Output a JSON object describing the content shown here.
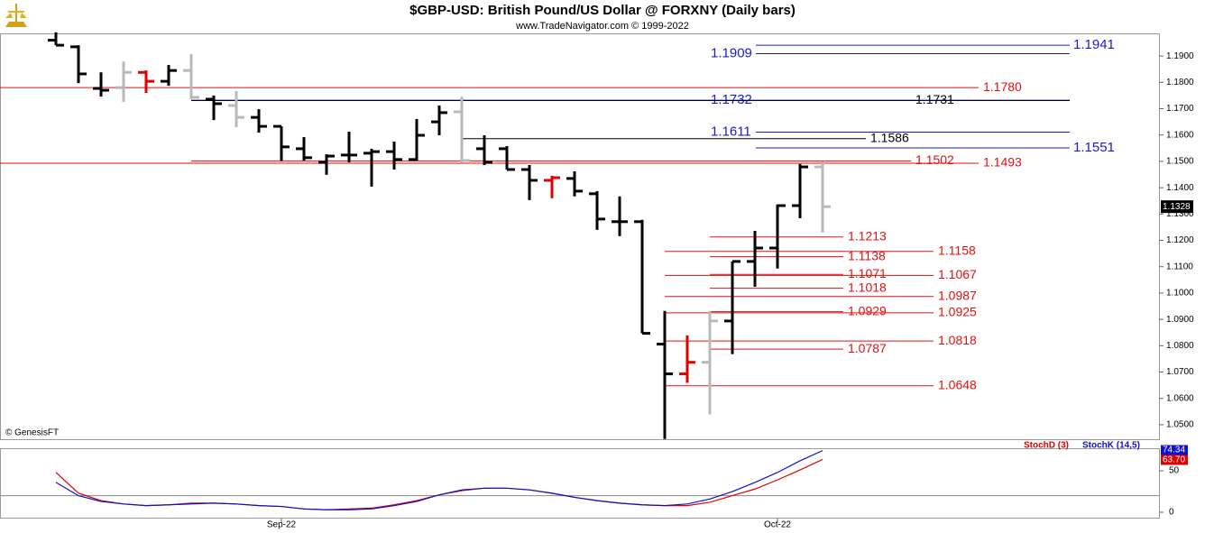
{
  "chart_data": [
    {
      "type": "ohlc",
      "title": "$GBP-USD:  British Pound/US Dollar @ FORXNY  (Daily bars)",
      "subtitle": "www.TradeNavigator.com © 1999-2022",
      "credit": "© GenesisFT",
      "categories": [
        null,
        null,
        null,
        null,
        null,
        null,
        null,
        null,
        null,
        null,
        "Sep-22",
        null,
        null,
        null,
        null,
        null,
        null,
        null,
        null,
        null,
        null,
        null,
        null,
        null,
        null,
        null,
        null,
        null,
        null,
        null,
        null,
        null,
        "Oct-22",
        null,
        null
      ],
      "open": [
        1.196,
        1.1935,
        1.1777,
        1.178,
        1.1838,
        1.1804,
        1.1845,
        1.1736,
        1.1712,
        1.1667,
        1.1633,
        1.1548,
        1.1496,
        1.1524,
        1.1531,
        1.1537,
        1.1507,
        1.165,
        1.1688,
        1.1548,
        1.1548,
        1.1469,
        1.1428,
        1.1435,
        1.1377,
        1.1271,
        1.1271,
        1.0806,
        1.0693,
        1.0737,
        1.0894,
        1.112,
        1.1171,
        1.1332,
        1.1479
      ],
      "high": [
        1.199,
        1.1941,
        1.1838,
        1.1879,
        1.1845,
        1.1866,
        1.1907,
        1.175,
        1.1767,
        1.1698,
        1.1633,
        1.1592,
        1.1527,
        1.1613,
        1.1548,
        1.1575,
        1.1661,
        1.1712,
        1.1746,
        1.1599,
        1.1558,
        1.1486,
        1.1445,
        1.1462,
        1.1387,
        1.1367,
        1.1278,
        1.0932,
        1.0839,
        1.0932,
        1.112,
        1.1236,
        1.1336,
        1.149,
        1.15
      ],
      "low": [
        1.1941,
        1.1797,
        1.1746,
        1.1726,
        1.176,
        1.1787,
        1.1736,
        1.1657,
        1.163,
        1.1609,
        1.1503,
        1.1503,
        1.1449,
        1.1496,
        1.1404,
        1.1469,
        1.1503,
        1.1599,
        1.1496,
        1.1486,
        1.1469,
        1.1353,
        1.136,
        1.1367,
        1.124,
        1.1216,
        1.0847,
        1.0446,
        1.0659,
        1.0539,
        1.0768,
        1.1024,
        1.1093,
        1.1284,
        1.123
      ],
      "close": [
        1.1941,
        1.1832,
        1.177,
        1.1838,
        1.1804,
        1.1845,
        1.1743,
        1.1719,
        1.1667,
        1.1633,
        1.1555,
        1.1514,
        1.152,
        1.1524,
        1.1537,
        1.1507,
        1.1599,
        1.1685,
        1.1503,
        1.1496,
        1.1469,
        1.1428,
        1.1438,
        1.1387,
        1.1281,
        1.1271,
        1.0847,
        1.0693,
        1.0737,
        1.0894,
        1.112,
        1.1171,
        1.1332,
        1.1479,
        1.1328
      ],
      "bar_colors": [
        "#000",
        "#000",
        "#000",
        "#b8b8b8",
        "#e00000",
        "#000",
        "#b8b8b8",
        "#000",
        "#b8b8b8",
        "#000",
        "#000",
        "#000",
        "#000",
        "#000",
        "#000",
        "#000",
        "#000",
        "#000",
        "#b8b8b8",
        "#000",
        "#000",
        "#000",
        "#e00000",
        "#000",
        "#000",
        "#000",
        "#000",
        "#000",
        "#e00000",
        "#b8b8b8",
        "#000",
        "#000",
        "#000",
        "#000",
        "#b8b8b8"
      ],
      "ylim": [
        1.0445,
        1.1986
      ],
      "yticks": [
        {
          "value": 1.05,
          "label": "1.0500"
        },
        {
          "value": 1.06,
          "label": "1.0600"
        },
        {
          "value": 1.07,
          "label": "1.0700"
        },
        {
          "value": 1.08,
          "label": "1.0800"
        },
        {
          "value": 1.09,
          "label": "1.0900"
        },
        {
          "value": 1.1,
          "label": "1.1000"
        },
        {
          "value": 1.11,
          "label": "1.1100"
        },
        {
          "value": 1.12,
          "label": "1.1200"
        },
        {
          "value": 1.13,
          "label": "1.1300"
        },
        {
          "value": 1.14,
          "label": "1.1400"
        },
        {
          "value": 1.15,
          "label": "1.1500"
        },
        {
          "value": 1.16,
          "label": "1.1600"
        },
        {
          "value": 1.17,
          "label": "1.1700"
        },
        {
          "value": 1.18,
          "label": "1.1800"
        },
        {
          "value": 1.19,
          "label": "1.1900"
        }
      ],
      "levels": [
        {
          "value": 1.1941,
          "label": "1.1941",
          "color": "#1a1acc"
        },
        {
          "value": 1.1909,
          "label": "1.1909",
          "color": "#1a1acc"
        },
        {
          "value": 1.178,
          "label": "1.1780",
          "color": "#e01010"
        },
        {
          "value": 1.1732,
          "label": "1.1732",
          "color": "#1a1acc"
        },
        {
          "value": 1.1731,
          "label": "1.1731",
          "color": "#000000"
        },
        {
          "value": 1.1611,
          "label": "1.1611",
          "color": "#1a1acc"
        },
        {
          "value": 1.1586,
          "label": "1.1586",
          "color": "#000000"
        },
        {
          "value": 1.1551,
          "label": "1.1551",
          "color": "#1a1acc"
        },
        {
          "value": 1.1502,
          "label": "1.1502",
          "color": "#e01010"
        },
        {
          "value": 1.1493,
          "label": "1.1493",
          "color": "#e01010"
        },
        {
          "value": 1.1213,
          "label": "1.1213",
          "color": "#e01010"
        },
        {
          "value": 1.1138,
          "label": "1.1138",
          "color": "#e01010"
        },
        {
          "value": 1.1071,
          "label": "1.1071",
          "color": "#e01010"
        },
        {
          "value": 1.1018,
          "label": "1.1018",
          "color": "#e01010"
        },
        {
          "value": 1.0929,
          "label": "1.0929",
          "color": "#e01010"
        },
        {
          "value": 1.0787,
          "label": "1.0787",
          "color": "#e01010"
        },
        {
          "value": 1.1158,
          "label": "1.1158",
          "color": "#e01010"
        },
        {
          "value": 1.1067,
          "label": "1.1067",
          "color": "#e01010"
        },
        {
          "value": 1.0987,
          "label": "1.0987",
          "color": "#e01010"
        },
        {
          "value": 1.0925,
          "label": "1.0925",
          "color": "#e01010"
        },
        {
          "value": 1.0818,
          "label": "1.0818",
          "color": "#e01010"
        },
        {
          "value": 1.0648,
          "label": "1.0648",
          "color": "#e01010"
        }
      ]
    },
    {
      "type": "line",
      "ylim": [
        -7.6,
        76.1
      ],
      "yticks": [
        0,
        50
      ],
      "hlines": [
        20
      ],
      "series": [
        {
          "name": "StochD (3)",
          "color": "#e00000",
          "values": [
            48,
            23,
            14,
            10,
            8,
            9,
            11,
            11,
            10,
            8,
            7,
            4,
            3,
            4,
            5,
            9,
            14,
            21,
            26,
            29,
            29,
            27,
            23,
            18,
            14,
            11,
            9,
            8,
            8,
            12,
            20,
            28,
            39,
            51,
            63.7
          ],
          "value_labels": [
            null,
            null,
            null,
            null,
            null,
            null,
            null,
            null,
            null,
            null,
            null,
            null,
            null,
            null,
            null,
            null,
            null,
            null,
            null,
            null,
            null,
            null,
            null,
            null,
            null,
            null,
            null,
            null,
            null,
            null,
            null,
            null,
            null,
            null,
            "63.70"
          ]
        },
        {
          "name": "StochK (14,5)",
          "color": "#1010cc",
          "values": [
            36,
            20,
            13,
            10,
            8,
            9,
            10,
            11,
            10,
            8,
            7,
            4,
            3,
            3,
            4,
            8,
            13,
            21,
            27,
            29,
            29,
            27,
            23,
            18,
            14,
            11,
            9,
            8,
            10,
            16,
            25,
            36,
            48,
            62,
            74.34
          ]
        }
      ]
    }
  ]
}
